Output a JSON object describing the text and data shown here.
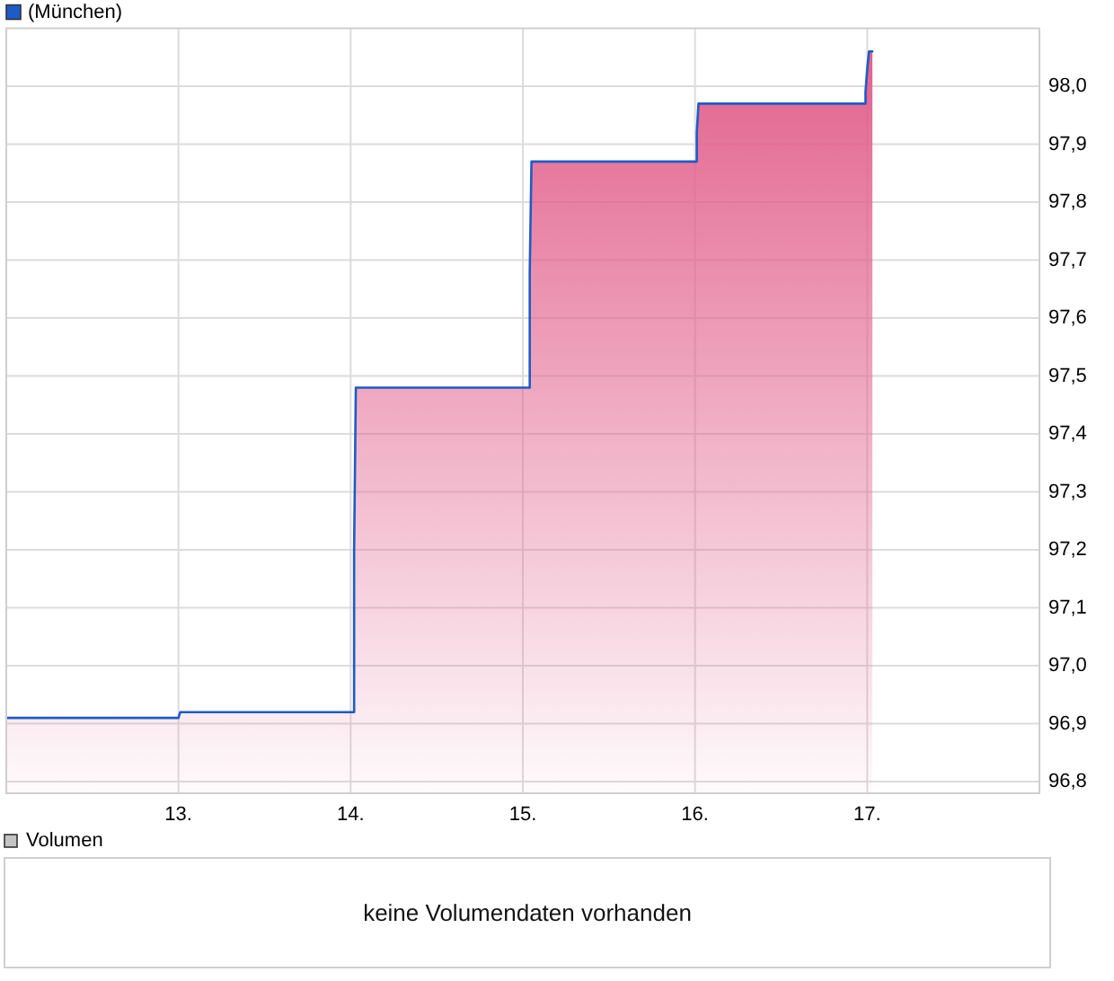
{
  "chart_data": [
    {
      "type": "area",
      "color": "#e2628d",
      "x": [
        12.0,
        13.0,
        13.01,
        14.02,
        14.02,
        14.03,
        15.04,
        15.04,
        15.05,
        16.01,
        16.01,
        16.02,
        16.99,
        16.99,
        17.0,
        17.01,
        17.03
      ],
      "series": [
        {
          "type": "area",
          "name": "(München)",
          "color": "#1c5bc8",
          "values": [
            96.91,
            96.91,
            96.92,
            96.92,
            97.2,
            97.48,
            97.48,
            97.68,
            97.87,
            97.87,
            97.92,
            97.97,
            97.97,
            97.99,
            98.03,
            98.06,
            98.06
          ]
        }
      ],
      "xlim": [
        12,
        18
      ],
      "xticks": [
        {
          "value": 13,
          "label": "13."
        },
        {
          "value": 14,
          "label": "14."
        },
        {
          "value": 15,
          "label": "15."
        },
        {
          "value": 16,
          "label": "16."
        },
        {
          "value": 17,
          "label": "17."
        }
      ],
      "ylim": [
        96.78,
        98.1
      ],
      "yticks": [
        {
          "value": 96.8,
          "label": "96,8"
        },
        {
          "value": 96.9,
          "label": "96,9"
        },
        {
          "value": 97.0,
          "label": "97,0"
        },
        {
          "value": 97.1,
          "label": "97,1"
        },
        {
          "value": 97.2,
          "label": "97,2"
        },
        {
          "value": 97.3,
          "label": "97,3"
        },
        {
          "value": 97.4,
          "label": "97,4"
        },
        {
          "value": 97.5,
          "label": "97,5"
        },
        {
          "value": 97.6,
          "label": "97,6"
        },
        {
          "value": 97.7,
          "label": "97,7"
        },
        {
          "value": 97.8,
          "label": "97,8"
        },
        {
          "value": 97.9,
          "label": "97,9"
        },
        {
          "value": 98.0,
          "label": "98,0"
        }
      ],
      "grid": true,
      "legend": "top left"
    },
    {
      "type": "other",
      "title": "Volumen",
      "annotations": [
        "keine Volumendaten vorhanden"
      ]
    }
  ]
}
